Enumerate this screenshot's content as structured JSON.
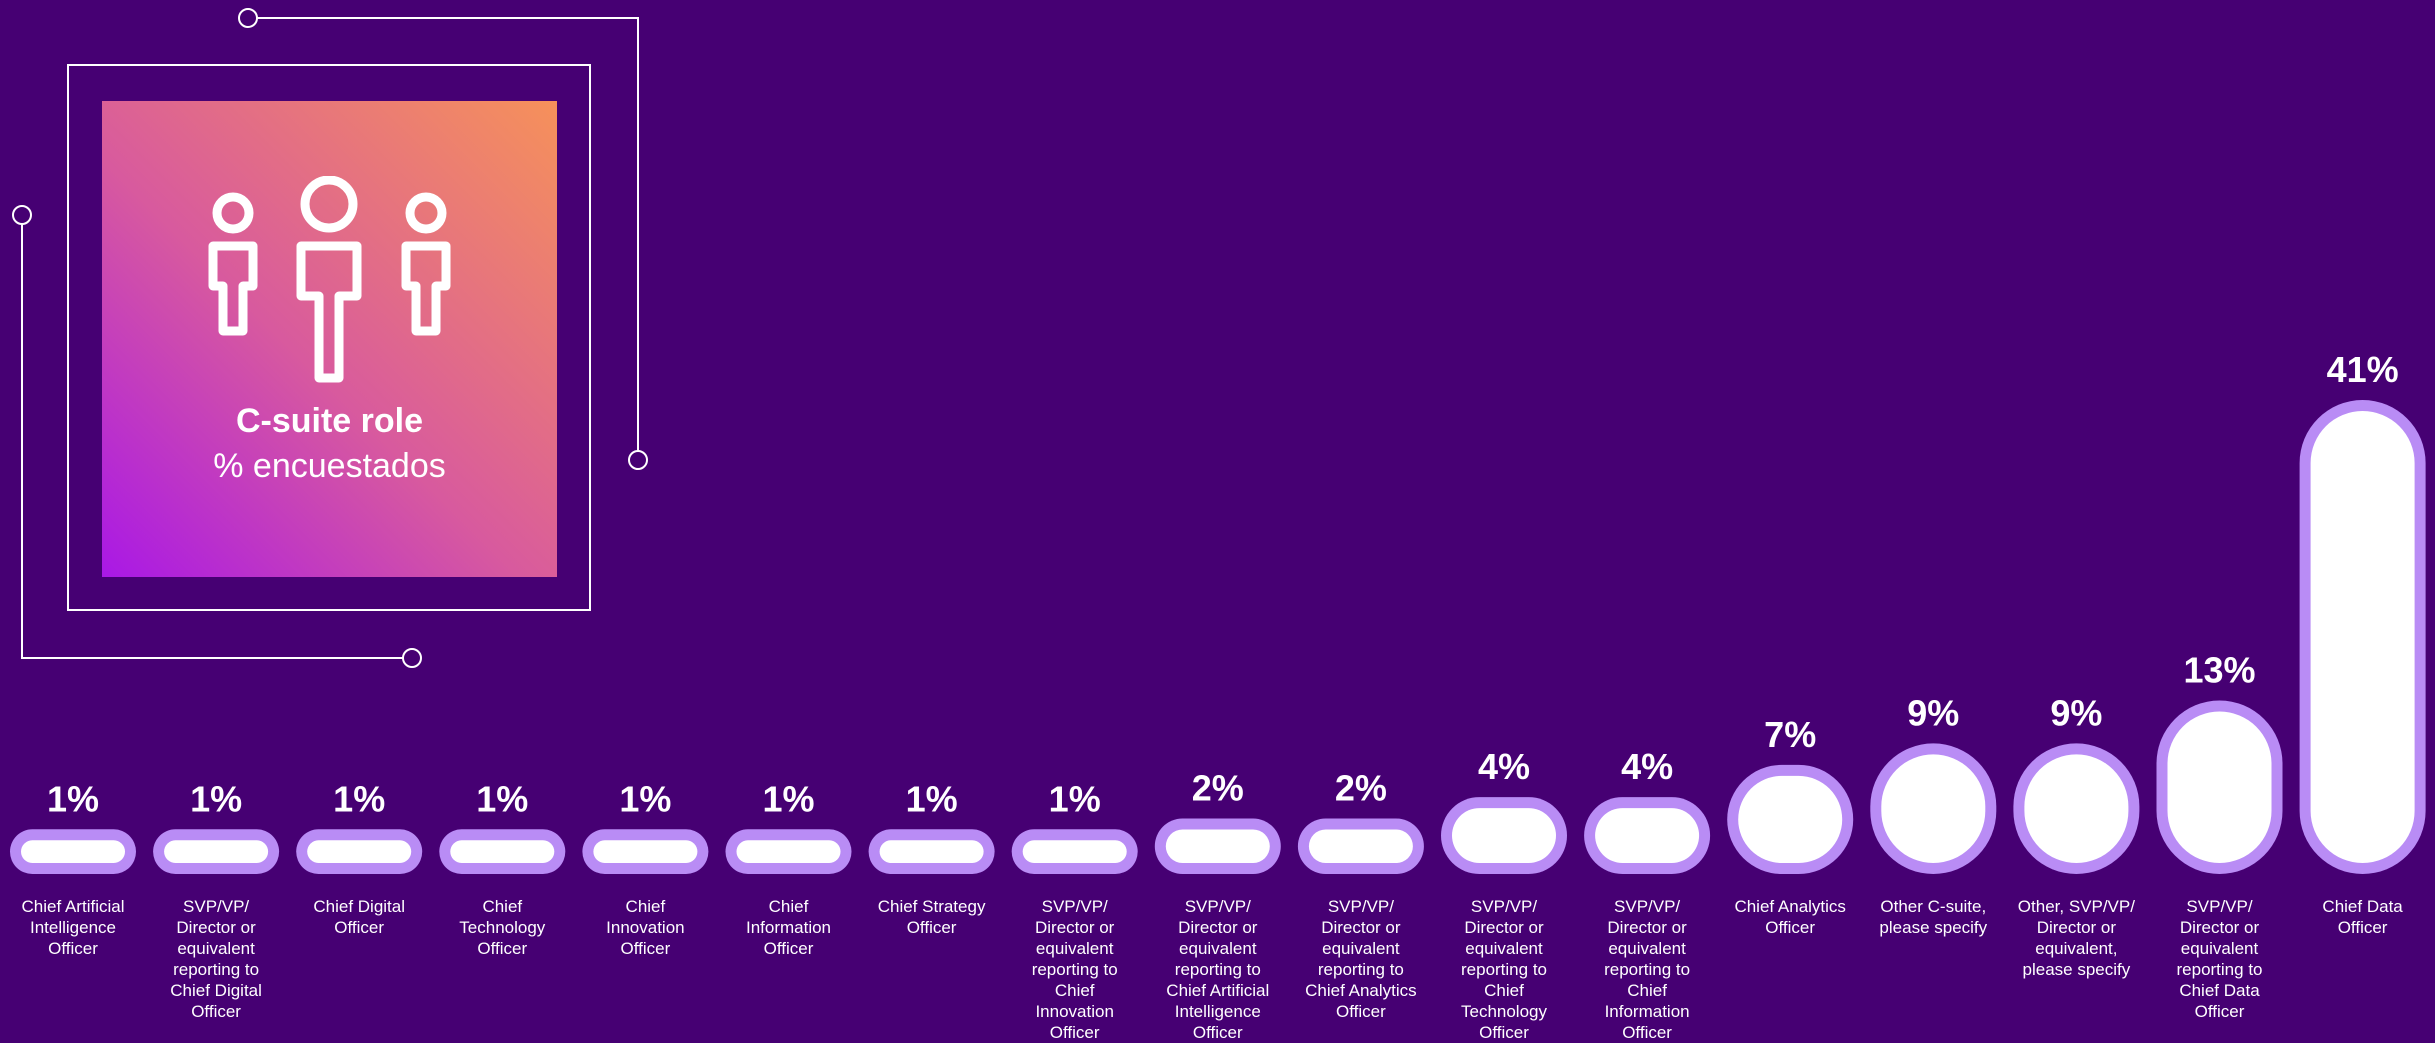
{
  "panel": {
    "title": "C-suite role",
    "subtitle": "% encuestados"
  },
  "colors": {
    "background": "#460073",
    "pill_outer": "#b98cf5",
    "pill_inner": "#ffffff",
    "panel_gradient": [
      "#a918e6",
      "#d85a9e",
      "#f6915a"
    ]
  },
  "icons": [
    "people-group-icon"
  ],
  "chart_data": {
    "type": "bar",
    "title": "C-suite role",
    "subtitle": "% encuestados",
    "unit": "%",
    "categories": [
      "Chief Artificial Intelligence Officer",
      "SVP/VP/ Director or equivalent reporting to Chief Digital Officer",
      "Chief Digital Officer",
      "Chief Technology Officer",
      "Chief Innovation Officer",
      "Chief Information Officer",
      "Chief Strategy Officer",
      "SVP/VP/ Director or equivalent reporting to Chief Innovation Officer",
      "SVP/VP/ Director or equivalent reporting to Chief Artificial Intelligence Officer",
      "SVP/VP/ Director or equivalent reporting to Chief Analytics Officer",
      "SVP/VP/ Director or equivalent reporting to Chief Technology Officer",
      "SVP/VP/ Director or equivalent reporting to Chief Information Officer",
      "Chief Analytics Officer",
      "Other C-suite, please specify",
      "Other, SVP/VP/ Director or equivalent, please specify",
      "SVP/VP/ Director or equivalent reporting to Chief Data Officer",
      "Chief Data Officer"
    ],
    "values": [
      1,
      1,
      1,
      1,
      1,
      1,
      1,
      1,
      2,
      2,
      4,
      4,
      7,
      9,
      9,
      13,
      41
    ],
    "value_labels": [
      "1%",
      "1%",
      "1%",
      "1%",
      "1%",
      "1%",
      "1%",
      "1%",
      "2%",
      "2%",
      "4%",
      "4%",
      "7%",
      "9%",
      "9%",
      "13%",
      "41%"
    ],
    "label_lines": [
      [
        "Chief Artificial",
        "Intelligence",
        "Officer"
      ],
      [
        "SVP/VP/",
        "Director or",
        "equivalent",
        "reporting to",
        "Chief Digital",
        "Officer"
      ],
      [
        "Chief Digital",
        "Officer"
      ],
      [
        "Chief",
        "Technology",
        "Officer"
      ],
      [
        "Chief",
        "Innovation",
        "Officer"
      ],
      [
        "Chief",
        "Information",
        "Officer"
      ],
      [
        "Chief Strategy",
        "Officer"
      ],
      [
        "SVP/VP/",
        "Director or",
        "equivalent",
        "reporting to",
        "Chief",
        "Innovation",
        "Officer"
      ],
      [
        "SVP/VP/",
        "Director or",
        "equivalent",
        "reporting to",
        "Chief Artificial",
        "Intelligence",
        "Officer"
      ],
      [
        "SVP/VP/",
        "Director or",
        "equivalent",
        "reporting to",
        "Chief Analytics",
        "Officer"
      ],
      [
        "SVP/VP/",
        "Director or",
        "equivalent",
        "reporting to",
        "Chief",
        "Technology",
        "Officer"
      ],
      [
        "SVP/VP/",
        "Director or",
        "equivalent",
        "reporting to",
        "Chief",
        "Information",
        "Officer"
      ],
      [
        "Chief Analytics",
        "Officer"
      ],
      [
        "Other C-suite,",
        "please specify"
      ],
      [
        "Other, SVP/VP/",
        "Director or",
        "equivalent,",
        "please specify"
      ],
      [
        "SVP/VP/",
        "Director or",
        "equivalent",
        "reporting to",
        "Chief Data",
        "Officer"
      ],
      [
        "Chief Data",
        "Officer"
      ]
    ],
    "ylim": [
      0,
      41
    ],
    "grid": false,
    "legend": "none"
  }
}
